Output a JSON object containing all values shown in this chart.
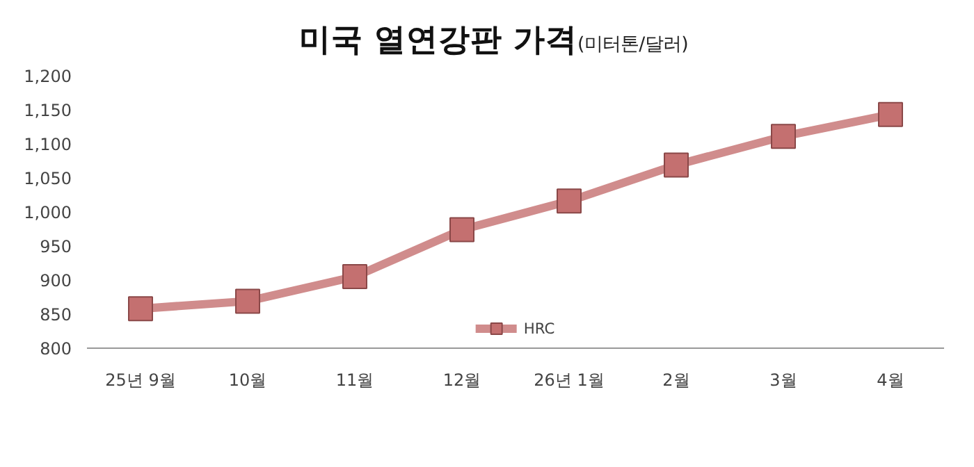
{
  "chart_data": {
    "type": "line",
    "title": "미국 열연강판 가격",
    "subtitle": "(미터톤/달러)",
    "categories": [
      "25년 9월",
      "10월",
      "11월",
      "12월",
      "26년 1월",
      "2월",
      "3월",
      "4월"
    ],
    "series": [
      {
        "name": "HRC",
        "color": "#d08c8c",
        "values": [
          858,
          869,
          905,
          974,
          1016,
          1069,
          1111,
          1143
        ]
      }
    ],
    "ylim": [
      800,
      1200
    ],
    "yticks": [
      800,
      {
        "value": 850,
        "label": "850"
      },
      {
        "value": 900,
        "label": "900"
      },
      {
        "value": 950,
        "label": "950"
      },
      {
        "value": 1000,
        "label": "1,000"
      },
      {
        "value": 1050,
        "label": "1,050"
      },
      {
        "value": 1100,
        "label": "1,100"
      },
      {
        "value": 1150,
        "label": "1,150"
      },
      {
        "value": 1200,
        "label": "1,200"
      }
    ],
    "grid": false,
    "legend": "bottom",
    "marker": "square",
    "line_style": "solid"
  }
}
